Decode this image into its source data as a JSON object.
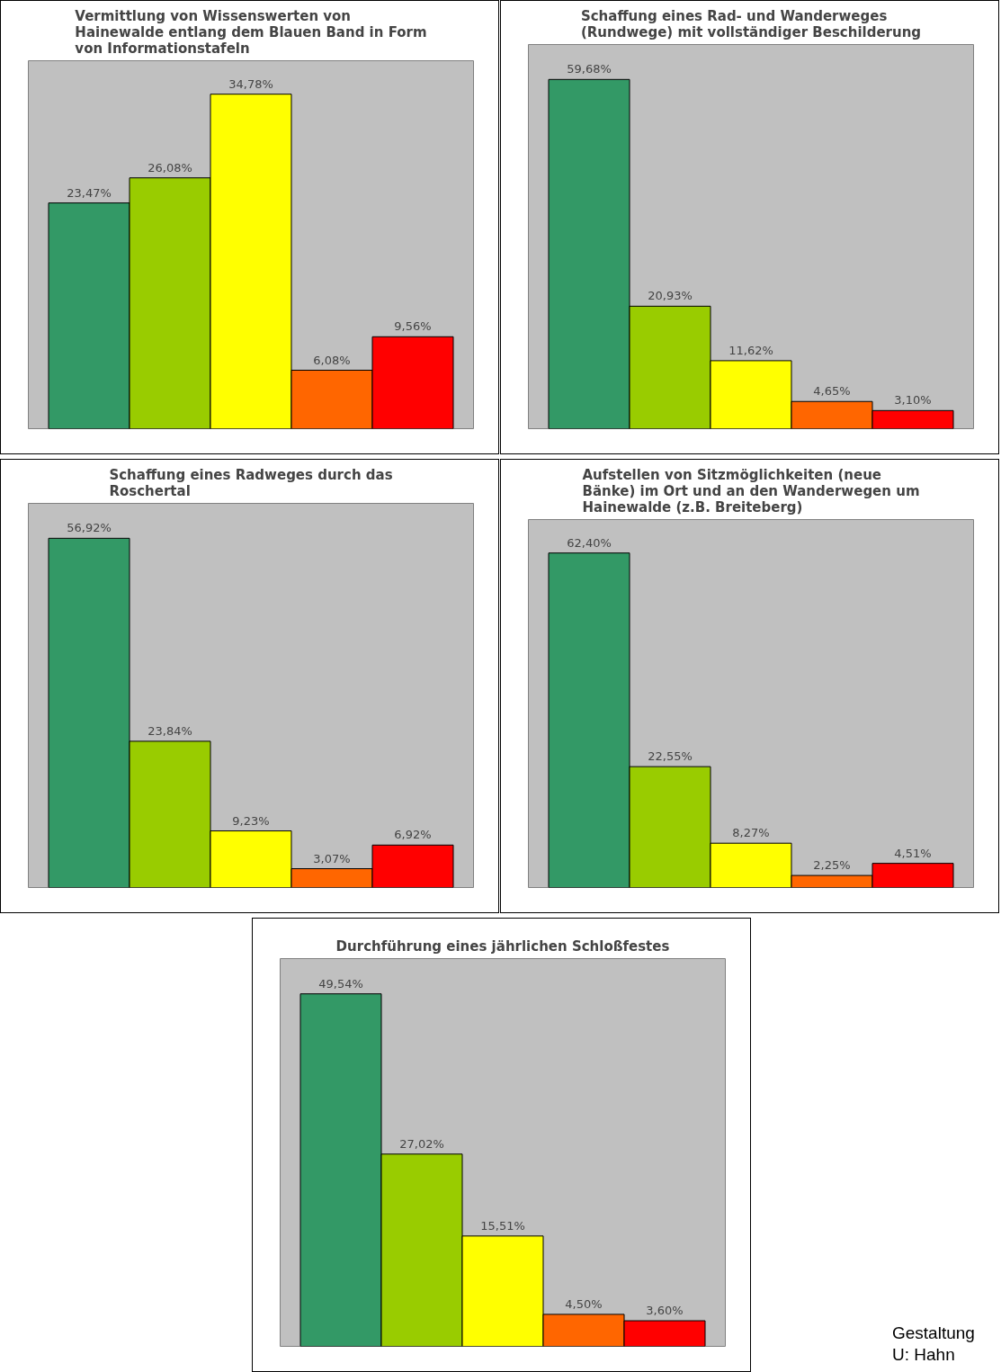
{
  "chart_data": [
    {
      "type": "bar",
      "title": "Vermittlung von Wissenswerten von Hainewalde entlang dem Blauen Band in Form von Informationstafeln",
      "categories": [
        null,
        null,
        null,
        null,
        null
      ],
      "values": [
        23.47,
        26.08,
        34.78,
        6.08,
        9.56
      ],
      "value_labels": [
        "23,47%",
        "26,08%",
        "34,78%",
        "6,08%",
        "9,56%"
      ],
      "colors": [
        "#339966",
        "#99cc00",
        "#ffff00",
        "#ff6600",
        "#ff0000"
      ],
      "grid": false,
      "legend": false
    },
    {
      "type": "bar",
      "title": "Schaffung eines Rad- und Wanderweges (Rundwege) mit vollständiger Beschilderung",
      "categories": [
        null,
        null,
        null,
        null,
        null
      ],
      "values": [
        59.68,
        20.93,
        11.62,
        4.65,
        3.1
      ],
      "value_labels": [
        "59,68%",
        "20,93%",
        "11,62%",
        "4,65%",
        "3,10%"
      ],
      "colors": [
        "#339966",
        "#99cc00",
        "#ffff00",
        "#ff6600",
        "#ff0000"
      ],
      "grid": false,
      "legend": false
    },
    {
      "type": "bar",
      "title": "Schaffung eines Radweges durch das Roschertal",
      "categories": [
        null,
        null,
        null,
        null,
        null
      ],
      "values": [
        56.92,
        23.84,
        9.23,
        3.07,
        6.92
      ],
      "value_labels": [
        "56,92%",
        "23,84%",
        "9,23%",
        "3,07%",
        "6,92%"
      ],
      "colors": [
        "#339966",
        "#99cc00",
        "#ffff00",
        "#ff6600",
        "#ff0000"
      ],
      "grid": false,
      "legend": false
    },
    {
      "type": "bar",
      "title": "Aufstellen von Sitzmöglichkeiten (neue Bänke) im Ort und an den Wanderwegen um Hainewalde (z.B. Breiteberg)",
      "categories": [
        null,
        null,
        null,
        null,
        null
      ],
      "values": [
        62.4,
        22.55,
        8.27,
        2.25,
        4.51
      ],
      "value_labels": [
        "62,40%",
        "22,55%",
        "8,27%",
        "2,25%",
        "4,51%"
      ],
      "colors": [
        "#339966",
        "#99cc00",
        "#ffff00",
        "#ff6600",
        "#ff0000"
      ],
      "grid": false,
      "legend": false
    },
    {
      "type": "bar",
      "title": "Durchführung eines jährlichen Schloßfestes",
      "categories": [
        null,
        null,
        null,
        null,
        null
      ],
      "values": [
        49.54,
        27.02,
        15.51,
        4.5,
        3.6
      ],
      "value_labels": [
        "49,54%",
        "27,02%",
        "15,51%",
        "4,50%",
        "3,60%"
      ],
      "colors": [
        "#339966",
        "#99cc00",
        "#ffff00",
        "#ff6600",
        "#ff0000"
      ],
      "grid": false,
      "legend": false,
      "annotations": [
        "Gestaltung",
        "U: Hahn"
      ]
    }
  ]
}
